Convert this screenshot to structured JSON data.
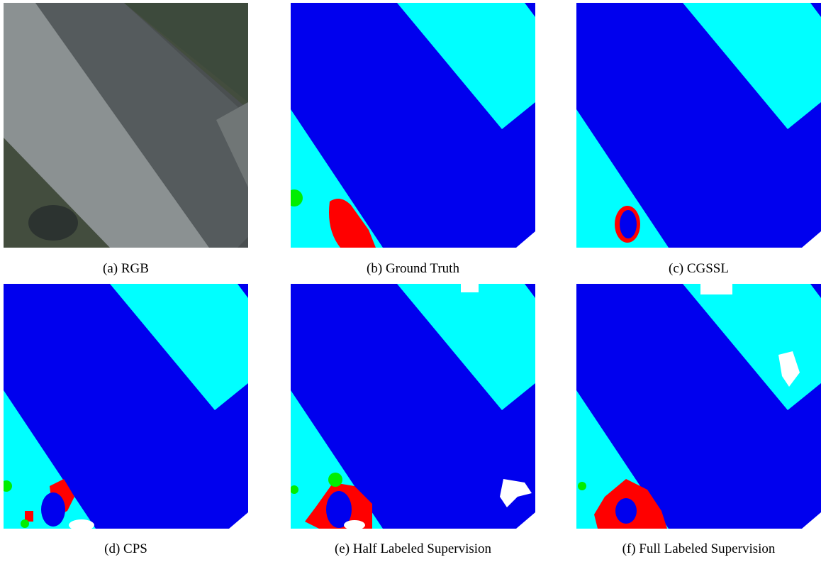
{
  "captions": [
    "(a) RGB",
    "(b) Ground Truth",
    "(c) CGSSL",
    "(d) CPS",
    "(e) Half Labeled Supervision",
    "(f) Full Labeled Supervision"
  ]
}
